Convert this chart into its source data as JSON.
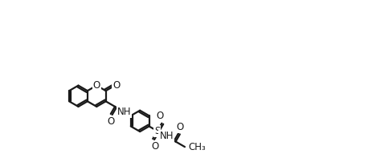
{
  "bg_color": "#ffffff",
  "line_color": "#1a1a1a",
  "line_width": 1.6,
  "font_size": 8.5,
  "fig_width": 4.58,
  "fig_height": 1.92,
  "dpi": 100,
  "xlim": [
    -2,
    22
  ],
  "ylim": [
    -5,
    9
  ]
}
